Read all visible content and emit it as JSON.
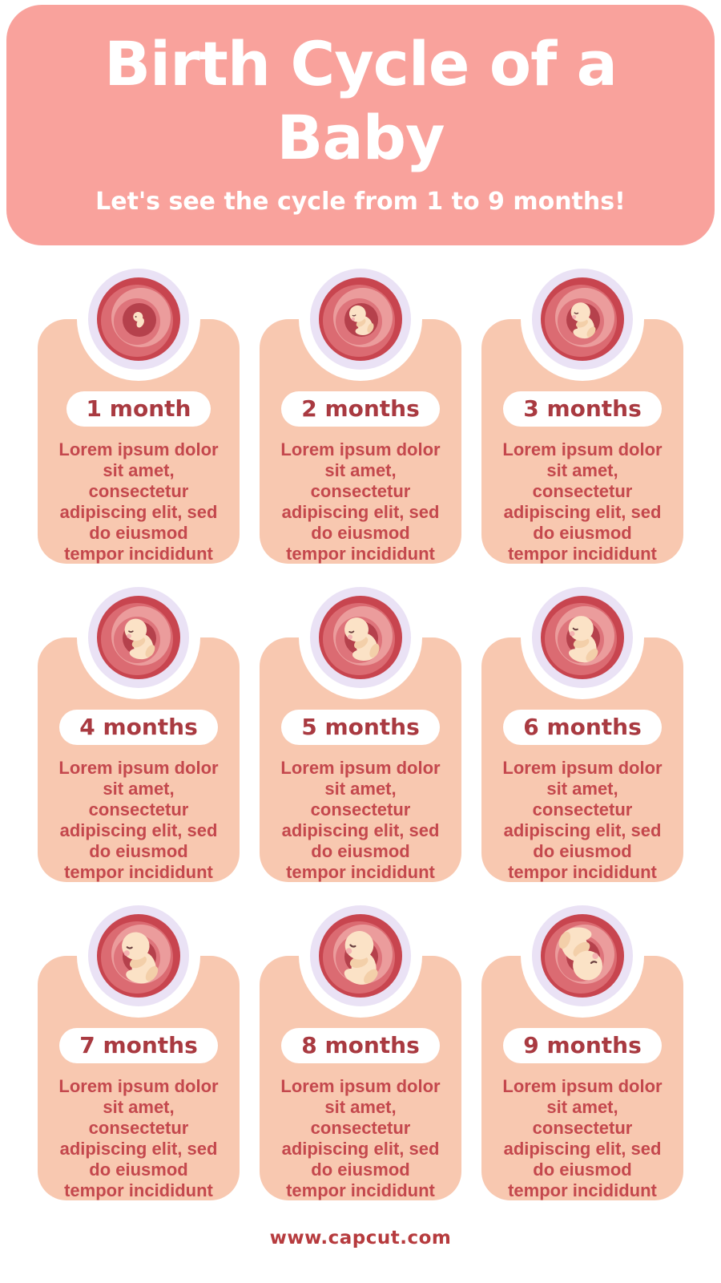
{
  "header": {
    "title": "Birth Cycle of a\nBaby",
    "subtitle": "Let's see the cycle from 1 to 9 months!"
  },
  "cards": [
    {
      "month_label": "1 month",
      "description": "Lorem ipsum dolor\nsit amet,\nconsectetur\nadipiscing elit, sed\ndo eiusmod\ntempor incididunt",
      "illustration": {
        "name": "embryo-in-womb-month-1",
        "stage": 1,
        "scale": 0.75,
        "rotate": 0
      }
    },
    {
      "month_label": "2 months",
      "description": "Lorem ipsum dolor\nsit amet,\nconsectetur\nadipiscing elit, sed\ndo eiusmod\ntempor incididunt",
      "illustration": {
        "name": "fetus-in-womb-month-2",
        "stage": 2,
        "scale": 0.9,
        "rotate": -8
      }
    },
    {
      "month_label": "3 months",
      "description": "Lorem ipsum dolor\nsit amet,\nconsectetur\nadipiscing elit, sed\ndo eiusmod\ntempor incididunt",
      "illustration": {
        "name": "fetus-in-womb-month-3",
        "stage": 3,
        "scale": 1.05,
        "rotate": 6
      }
    },
    {
      "month_label": "4 months",
      "description": "Lorem ipsum dolor\nsit amet,\nconsectetur\nadipiscing elit, sed\ndo eiusmod\ntempor incididunt",
      "illustration": {
        "name": "fetus-in-womb-month-4",
        "stage": 4,
        "scale": 1.2,
        "rotate": 0
      }
    },
    {
      "month_label": "5 months",
      "description": "Lorem ipsum dolor\nsit amet,\nconsectetur\nadipiscing elit, sed\ndo eiusmod\ntempor incididunt",
      "illustration": {
        "name": "fetus-in-womb-month-5",
        "stage": 5,
        "scale": 1.3,
        "rotate": -6
      }
    },
    {
      "month_label": "6 months",
      "description": "Lorem ipsum dolor\nsit amet,\nconsectetur\nadipiscing elit, sed\ndo eiusmod\ntempor incididunt",
      "illustration": {
        "name": "fetus-in-womb-month-6",
        "stage": 6,
        "scale": 1.35,
        "rotate": 12
      }
    },
    {
      "month_label": "7 months",
      "description": "Lorem ipsum dolor\nsit amet,\nconsectetur\nadipiscing elit, sed\ndo eiusmod\ntempor incididunt",
      "illustration": {
        "name": "fetus-in-womb-month-7",
        "stage": 7,
        "scale": 1.5,
        "rotate": 4
      }
    },
    {
      "month_label": "8 months",
      "description": "Lorem ipsum dolor\nsit amet,\nconsectetur\nadipiscing elit, sed\ndo eiusmod\ntempor incididunt",
      "illustration": {
        "name": "fetus-in-womb-month-8",
        "stage": 8,
        "scale": 1.55,
        "rotate": 14
      }
    },
    {
      "month_label": "9 months",
      "description": "Lorem ipsum dolor\nsit amet,\nconsectetur\nadipiscing elit, sed\ndo eiusmod\ntempor incididunt",
      "illustration": {
        "name": "fetus-in-womb-month-9-head-down",
        "stage": 9,
        "scale": 1.6,
        "rotate": 172
      }
    }
  ],
  "footer": {
    "url": "www.capcut.com"
  },
  "colors": {
    "header_bg": "#F9A29C",
    "card_bg": "#F8C8B0",
    "title_text": "#FFFFFF",
    "body_text": "#C4484D",
    "badge_bg": "#FFFFFF",
    "badge_text": "#A93A41",
    "footer_text": "#B63B3E",
    "ring_white": "#FFFFFF",
    "ring_lavender": "#EAE2F5",
    "womb_outer": "#C8454F",
    "womb_mid1": "#DB6B72",
    "womb_mid2": "#EB9C9C",
    "womb_mid3": "#DE747B",
    "womb_inner": "#B5414C",
    "fetus_skin": "#FBE2C6",
    "fetus_shade": "#F3CFA9",
    "fetus_eye": "#6B4040",
    "fetus_cheek": "#F2A9AD"
  }
}
